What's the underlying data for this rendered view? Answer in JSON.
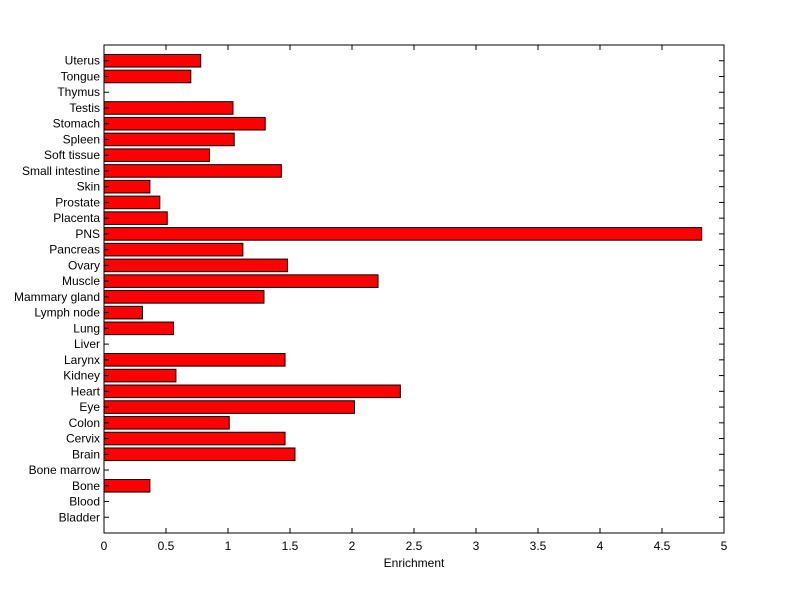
{
  "chart_data": {
    "type": "bar",
    "orientation": "horizontal",
    "title": "",
    "xlabel": "Enrichment",
    "ylabel": "",
    "xlim": [
      0,
      5
    ],
    "xticks": [
      "0",
      "0.5",
      "1",
      "1.5",
      "2",
      "2.5",
      "3",
      "3.5",
      "4",
      "4.5",
      "5"
    ],
    "grid": false,
    "bar_color": "#ff0000",
    "categories": [
      "Bladder",
      "Blood",
      "Bone",
      "Bone marrow",
      "Brain",
      "Cervix",
      "Colon",
      "Eye",
      "Heart",
      "Kidney",
      "Larynx",
      "Liver",
      "Lung",
      "Lymph node",
      "Mammary gland",
      "Muscle",
      "Ovary",
      "Pancreas",
      "PNS",
      "Placenta",
      "Prostate",
      "Skin",
      "Small intestine",
      "Soft tissue",
      "Spleen",
      "Stomach",
      "Testis",
      "Thymus",
      "Tongue",
      "Uterus"
    ],
    "values": [
      0,
      0,
      0.37,
      0,
      1.54,
      1.46,
      1.01,
      2.02,
      2.39,
      0.58,
      1.46,
      0,
      0.56,
      0.31,
      1.29,
      2.21,
      1.48,
      1.12,
      4.82,
      0.51,
      0.45,
      0.37,
      1.43,
      0.85,
      1.05,
      1.3,
      1.04,
      0,
      0.7,
      0.78
    ]
  }
}
